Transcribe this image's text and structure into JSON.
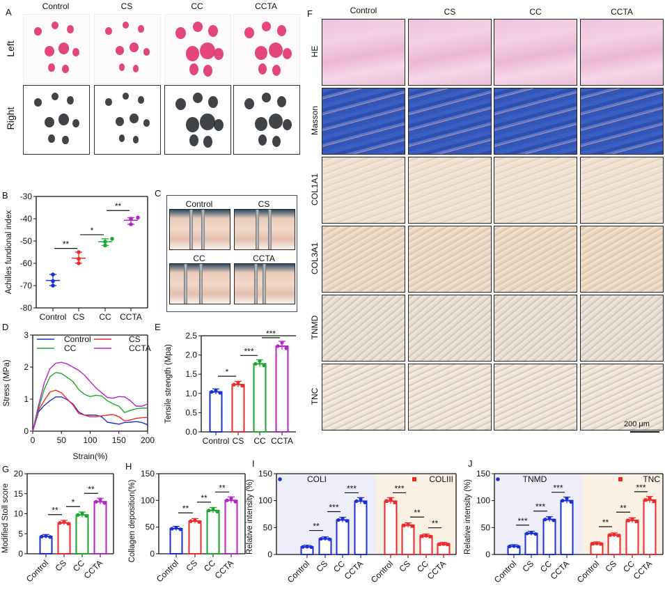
{
  "panel_labels": {
    "A": "A",
    "B": "B",
    "C": "C",
    "D": "D",
    "E": "E",
    "F": "F",
    "G": "G",
    "H": "H",
    "I": "I",
    "J": "J"
  },
  "groups": [
    "Control",
    "CS",
    "CC",
    "CCTA"
  ],
  "panel_a": {
    "rows": [
      "Left",
      "Right"
    ]
  },
  "panel_c": {
    "photos": [
      "Control",
      "CS",
      "CC",
      "CCTA"
    ]
  },
  "panel_f": {
    "rows": [
      "HE",
      "Masson",
      "COL1A1",
      "COL3A1",
      "TNMD",
      "TNC"
    ],
    "scale_bar": "200 μm"
  },
  "colors": {
    "Control": "#1a2fd6",
    "CS": "#f0282a",
    "CC": "#1aa82a",
    "CCTA": "#b523c8",
    "bgI": "#eeeefb",
    "bgII": "#fbf0e4"
  },
  "chart_data": [
    {
      "id": "B",
      "type": "scatter",
      "ylabel": "Achilles fundional index",
      "ylim": [
        -80,
        -30
      ],
      "yticks": [
        -30,
        -40,
        -50,
        -60,
        -70,
        -80
      ],
      "categories": [
        "Control",
        "CS",
        "CC",
        "CCTA"
      ],
      "means": [
        -67.7,
        -57.7,
        -50.3,
        -40.7
      ],
      "points": [
        [
          -65,
          -68,
          -70
        ],
        [
          -55,
          -58,
          -60
        ],
        [
          -49,
          -50.3,
          -52
        ],
        [
          -39.5,
          -40,
          -42.5
        ]
      ],
      "sig": [
        {
          "from": 0,
          "to": 1,
          "label": "**"
        },
        {
          "from": 1,
          "to": 2,
          "label": "*"
        },
        {
          "from": 2,
          "to": 3,
          "label": "**"
        }
      ]
    },
    {
      "id": "D",
      "type": "line",
      "xlabel": "Strain(%)",
      "ylabel": "Stress (MPa)",
      "xlim": [
        0,
        200
      ],
      "ylim": [
        0,
        3
      ],
      "xticks": [
        0,
        50,
        100,
        150,
        200
      ],
      "yticks": [
        0,
        1,
        2,
        3
      ],
      "x": [
        0,
        10,
        20,
        30,
        40,
        50,
        60,
        70,
        80,
        90,
        100,
        110,
        120,
        130,
        140,
        150,
        160,
        170,
        180,
        190,
        200
      ],
      "series": [
        {
          "name": "Control",
          "values": [
            0,
            0.6,
            0.8,
            0.95,
            1.07,
            1.07,
            0.98,
            0.85,
            0.6,
            0.5,
            0.5,
            0.5,
            0.45,
            0.28,
            0.25,
            0.22,
            0.27,
            0.28,
            0.3,
            0.27,
            0.2
          ]
        },
        {
          "name": "CS",
          "values": [
            0,
            0.65,
            0.95,
            1.22,
            1.28,
            1.2,
            1.0,
            0.82,
            0.55,
            0.5,
            0.45,
            0.45,
            0.48,
            0.5,
            0.52,
            0.45,
            0.32,
            0.35,
            0.4,
            0.42,
            0.43
          ]
        },
        {
          "name": "CC",
          "values": [
            0,
            0.7,
            1.3,
            1.7,
            1.83,
            1.8,
            1.68,
            1.55,
            1.3,
            1.15,
            1.08,
            1.12,
            1.1,
            0.95,
            0.85,
            0.78,
            0.58,
            0.65,
            0.7,
            0.72,
            0.72
          ]
        },
        {
          "name": "CCTA",
          "values": [
            0,
            0.8,
            1.5,
            1.95,
            2.12,
            2.15,
            2.1,
            2.0,
            1.9,
            1.75,
            1.55,
            1.35,
            1.2,
            1.05,
            1.03,
            1.08,
            1.07,
            0.95,
            0.78,
            0.78,
            0.85
          ]
        }
      ],
      "legend": "top"
    },
    {
      "id": "E",
      "type": "bar",
      "ylabel": "Tensile strength (Mpa)",
      "ylim": [
        0,
        2.5
      ],
      "yticks": [
        0.0,
        0.5,
        1.0,
        1.5,
        2.0,
        2.5
      ],
      "ytick_labels": [
        "0.0",
        "0.5",
        "1.0",
        "1.5",
        "2.0",
        "2.5"
      ],
      "categories": [
        "Control",
        "CS",
        "CC",
        "CCTA"
      ],
      "values": [
        1.04,
        1.23,
        1.77,
        2.23
      ],
      "sig": [
        {
          "from": 0,
          "to": 1,
          "label": "*"
        },
        {
          "from": 1,
          "to": 2,
          "label": "***"
        },
        {
          "from": 2,
          "to": 3,
          "label": "***"
        }
      ]
    },
    {
      "id": "G",
      "type": "bar",
      "ylabel": "Modified Stoll score",
      "ylim": [
        0,
        20
      ],
      "yticks": [
        0,
        5,
        10,
        15,
        20
      ],
      "categories": [
        "Control",
        "CS",
        "CC",
        "CCTA"
      ],
      "values": [
        4.3,
        7.7,
        9.7,
        13.0
      ],
      "sig": [
        {
          "from": 0,
          "to": 1,
          "label": "**"
        },
        {
          "from": 1,
          "to": 2,
          "label": "*"
        },
        {
          "from": 2,
          "to": 3,
          "label": "**"
        }
      ]
    },
    {
      "id": "H",
      "type": "bar",
      "ylabel": "Collagen deposition(%)",
      "ylim": [
        0,
        150
      ],
      "yticks": [
        0,
        50,
        100,
        150
      ],
      "categories": [
        "Control",
        "CS",
        "CC",
        "CCTA"
      ],
      "values": [
        47,
        61,
        81,
        100
      ],
      "sig": [
        {
          "from": 0,
          "to": 1,
          "label": "**"
        },
        {
          "from": 1,
          "to": 2,
          "label": "**"
        },
        {
          "from": 2,
          "to": 3,
          "label": "**"
        }
      ]
    },
    {
      "id": "I",
      "type": "bar",
      "ylabel": "Relative intensity (%)",
      "ylim": [
        0,
        150
      ],
      "yticks": [
        0,
        50,
        100,
        150
      ],
      "categories": [
        "Control",
        "CS",
        "CC",
        "CCTA"
      ],
      "series": [
        {
          "name": "COLI",
          "values": [
            14,
            29,
            64,
            99
          ],
          "sig": [
            {
              "from": 0,
              "to": 1,
              "label": "**"
            },
            {
              "from": 1,
              "to": 2,
              "label": "***"
            },
            {
              "from": 2,
              "to": 3,
              "label": "***"
            }
          ]
        },
        {
          "name": "COLIII",
          "values": [
            99,
            54,
            34,
            19
          ],
          "sig": [
            {
              "from": 0,
              "to": 1,
              "label": "***"
            },
            {
              "from": 1,
              "to": 2,
              "label": "**"
            },
            {
              "from": 2,
              "to": 3,
              "label": "**"
            }
          ]
        }
      ]
    },
    {
      "id": "J",
      "type": "bar",
      "ylabel": "Relative intensity (%)",
      "ylim": [
        0,
        150
      ],
      "yticks": [
        0,
        50,
        100,
        150
      ],
      "categories": [
        "Control",
        "CS",
        "CC",
        "CCTA"
      ],
      "series": [
        {
          "name": "TNMD",
          "values": [
            15,
            39,
            65,
            100
          ],
          "sig": [
            {
              "from": 0,
              "to": 1,
              "label": "***"
            },
            {
              "from": 1,
              "to": 2,
              "label": "***"
            },
            {
              "from": 2,
              "to": 3,
              "label": "***"
            }
          ]
        },
        {
          "name": "TNC",
          "values": [
            20,
            36,
            63,
            101
          ],
          "sig": [
            {
              "from": 0,
              "to": 1,
              "label": "**"
            },
            {
              "from": 1,
              "to": 2,
              "label": "**"
            },
            {
              "from": 2,
              "to": 3,
              "label": "***"
            }
          ]
        }
      ]
    }
  ]
}
